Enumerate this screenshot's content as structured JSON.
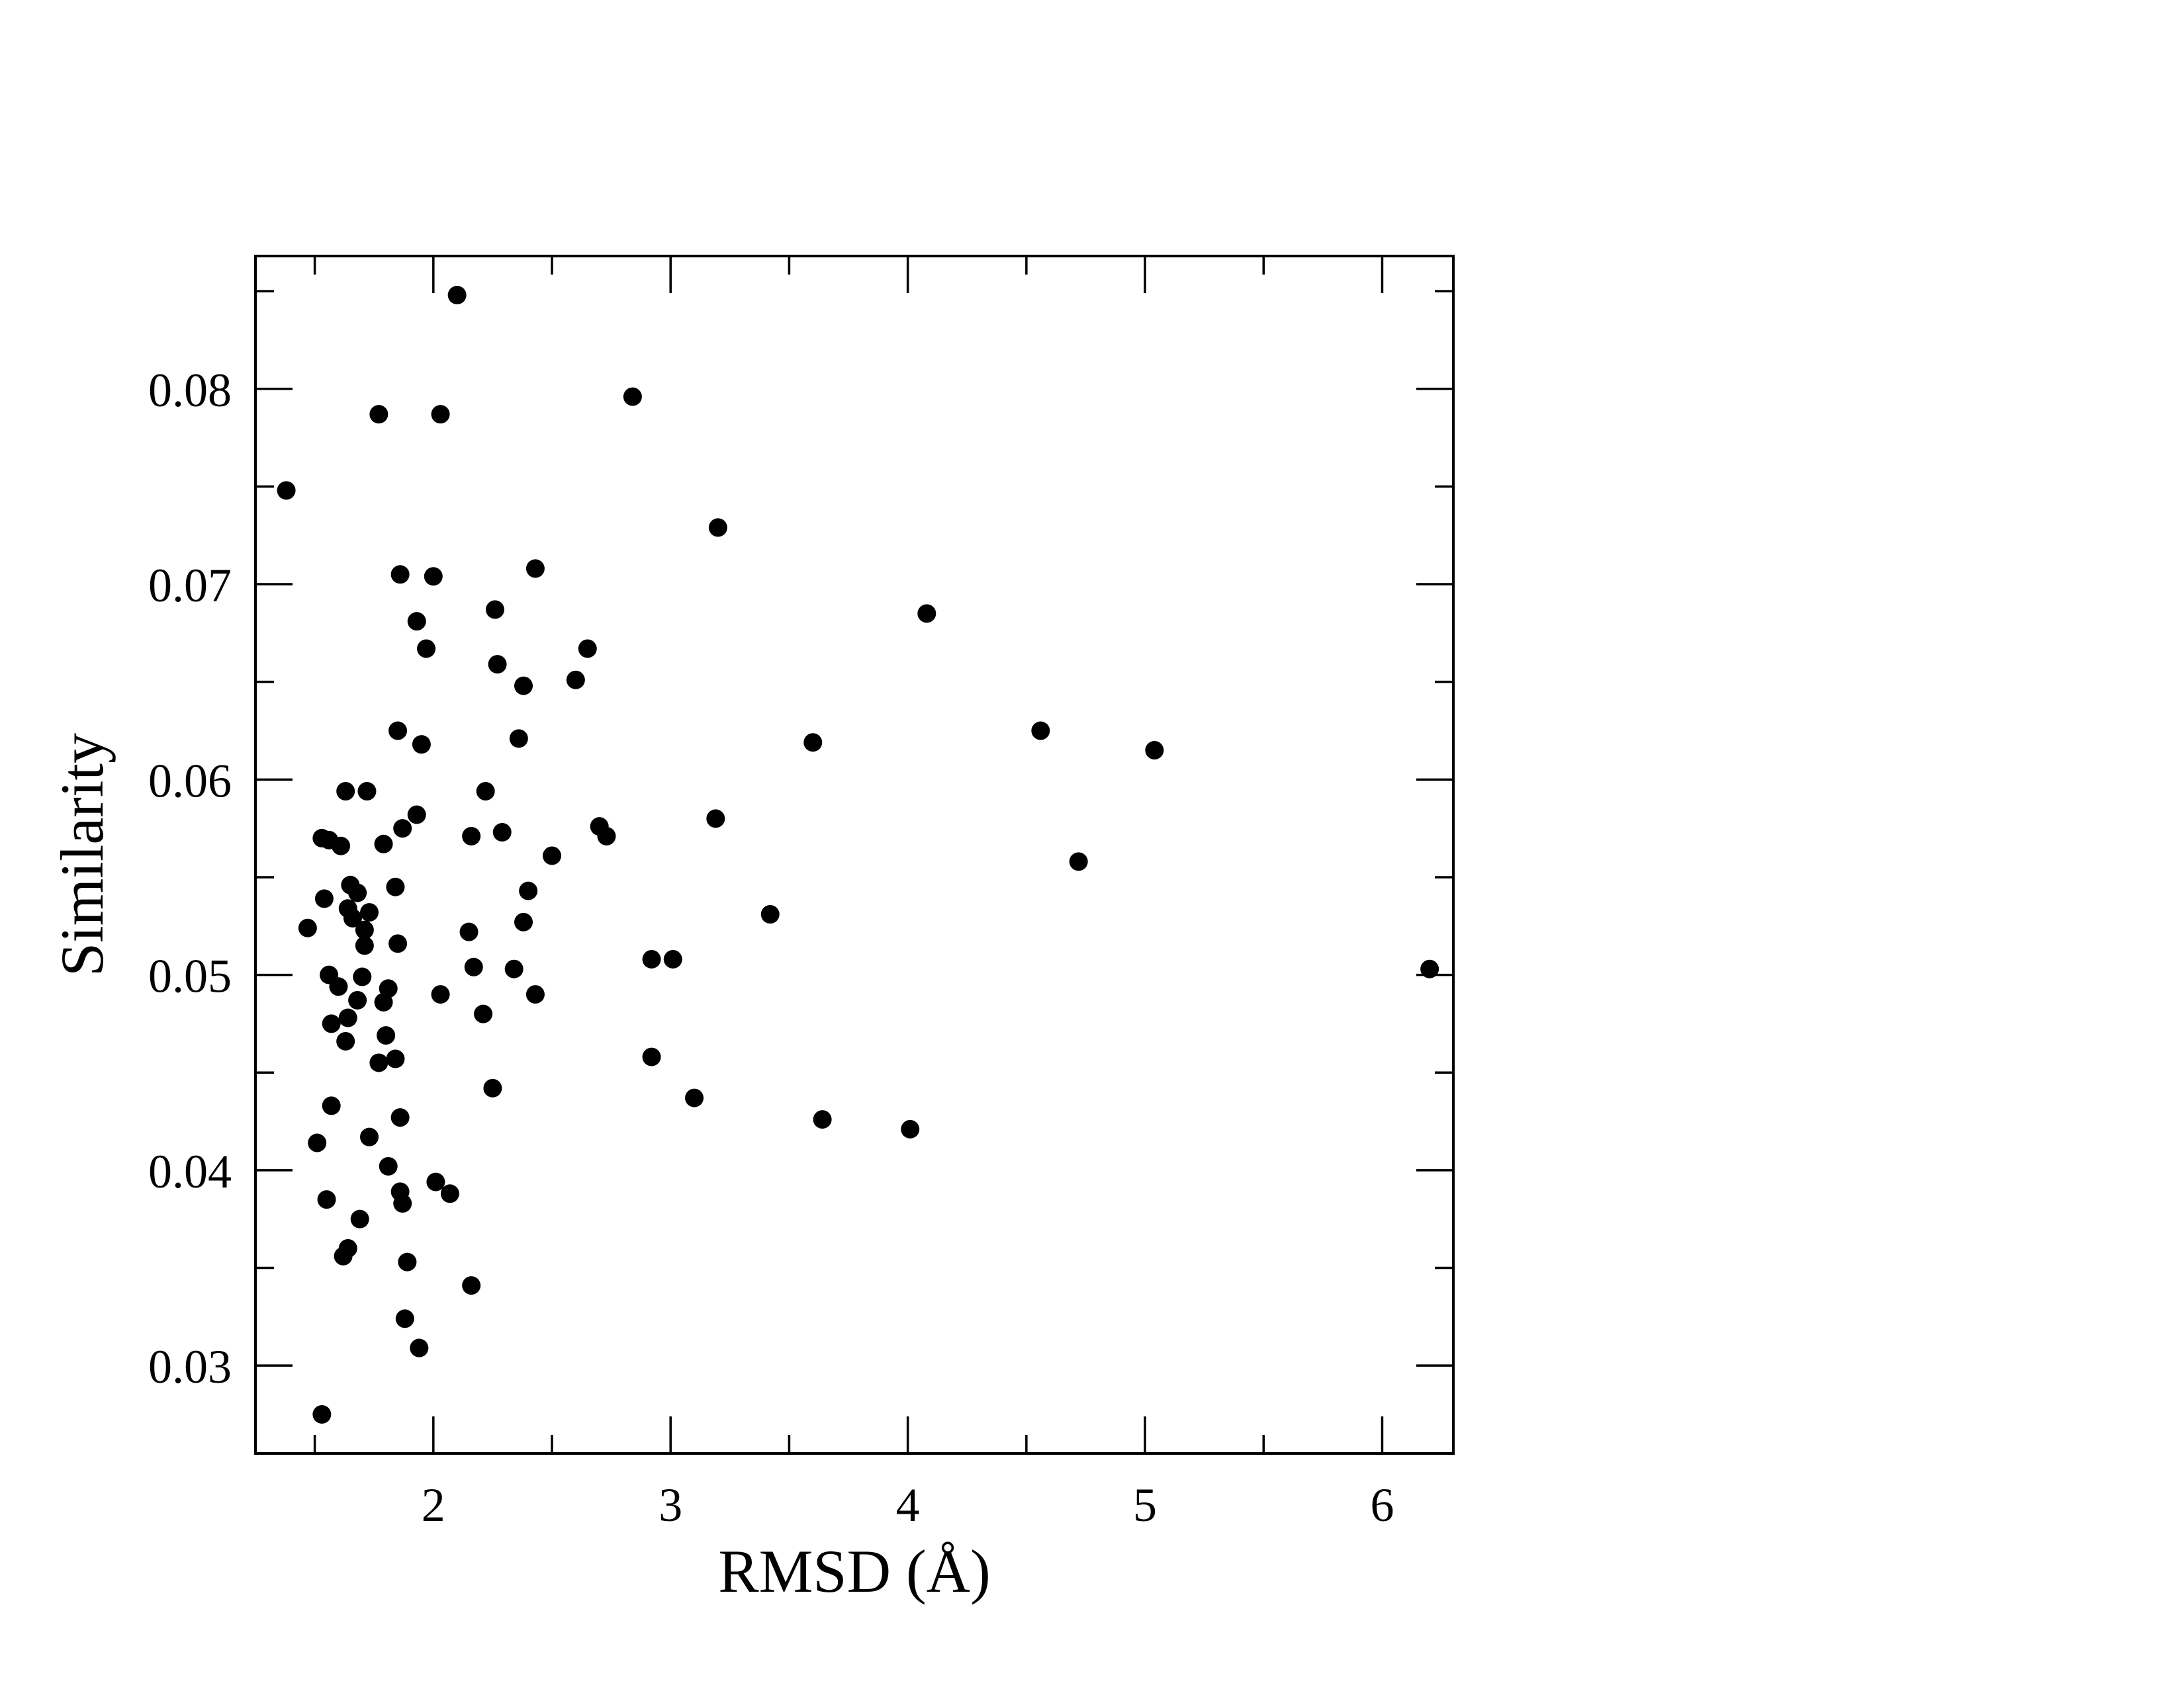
{
  "chart_data": {
    "type": "scatter",
    "title": "",
    "xlabel": "RMSD (Å)",
    "ylabel": "Similarity",
    "xlim": [
      1.25,
      6.3
    ],
    "ylim": [
      0.0255,
      0.0868
    ],
    "x_ticks": [
      2,
      3,
      4,
      5,
      6
    ],
    "x_tick_labels": [
      "2",
      "3",
      "4",
      "5",
      "6"
    ],
    "x_minor_ticks": [
      1.5,
      2.5,
      3.5,
      4.5,
      5.5
    ],
    "y_ticks": [
      0.03,
      0.04,
      0.05,
      0.06,
      0.07,
      0.08
    ],
    "y_tick_labels": [
      "0.03",
      "0.04",
      "0.05",
      "0.06",
      "0.07",
      "0.08"
    ],
    "y_minor_ticks": [
      0.035,
      0.045,
      0.055,
      0.065,
      0.075,
      0.085
    ],
    "grid": false,
    "marker_color": "#000000",
    "points": [
      [
        2.1,
        0.0848
      ],
      [
        2.84,
        0.0796
      ],
      [
        1.77,
        0.0787
      ],
      [
        2.03,
        0.0787
      ],
      [
        1.38,
        0.0748
      ],
      [
        3.2,
        0.0729
      ],
      [
        2.43,
        0.0708
      ],
      [
        1.86,
        0.0705
      ],
      [
        2.0,
        0.0704
      ],
      [
        1.93,
        0.0681
      ],
      [
        2.26,
        0.0687
      ],
      [
        4.08,
        0.0685
      ],
      [
        1.97,
        0.0667
      ],
      [
        2.65,
        0.0667
      ],
      [
        2.27,
        0.0659
      ],
      [
        2.6,
        0.0651
      ],
      [
        2.38,
        0.0648
      ],
      [
        1.85,
        0.0625
      ],
      [
        4.56,
        0.0625
      ],
      [
        1.95,
        0.0618
      ],
      [
        2.36,
        0.0621
      ],
      [
        3.6,
        0.0619
      ],
      [
        5.04,
        0.0615
      ],
      [
        1.63,
        0.0594
      ],
      [
        1.72,
        0.0594
      ],
      [
        2.22,
        0.0594
      ],
      [
        1.93,
        0.0582
      ],
      [
        3.19,
        0.058
      ],
      [
        1.87,
        0.0575
      ],
      [
        2.7,
        0.0576
      ],
      [
        2.29,
        0.0573
      ],
      [
        2.16,
        0.0571
      ],
      [
        2.73,
        0.0571
      ],
      [
        1.53,
        0.057
      ],
      [
        1.56,
        0.0569
      ],
      [
        1.61,
        0.0566
      ],
      [
        1.79,
        0.0567
      ],
      [
        2.5,
        0.0561
      ],
      [
        4.72,
        0.0558
      ],
      [
        1.65,
        0.0546
      ],
      [
        1.84,
        0.0545
      ],
      [
        1.68,
        0.0542
      ],
      [
        2.4,
        0.0543
      ],
      [
        1.54,
        0.0539
      ],
      [
        1.64,
        0.0534
      ],
      [
        1.73,
        0.0532
      ],
      [
        3.42,
        0.0531
      ],
      [
        1.66,
        0.0529
      ],
      [
        2.38,
        0.0527
      ],
      [
        1.71,
        0.0523
      ],
      [
        1.47,
        0.0524
      ],
      [
        2.15,
        0.0522
      ],
      [
        1.85,
        0.0516
      ],
      [
        1.71,
        0.0515
      ],
      [
        2.92,
        0.0508
      ],
      [
        3.01,
        0.0508
      ],
      [
        2.17,
        0.0504
      ],
      [
        2.34,
        0.0503
      ],
      [
        6.2,
        0.0503
      ],
      [
        1.56,
        0.05
      ],
      [
        1.7,
        0.0499
      ],
      [
        1.6,
        0.0494
      ],
      [
        1.81,
        0.0493
      ],
      [
        2.03,
        0.049
      ],
      [
        2.43,
        0.049
      ],
      [
        1.68,
        0.0487
      ],
      [
        1.79,
        0.0486
      ],
      [
        2.21,
        0.048
      ],
      [
        1.64,
        0.0478
      ],
      [
        1.57,
        0.0475
      ],
      [
        1.8,
        0.0469
      ],
      [
        1.63,
        0.0466
      ],
      [
        1.84,
        0.0457
      ],
      [
        2.92,
        0.0458
      ],
      [
        1.77,
        0.0455
      ],
      [
        2.25,
        0.0442
      ],
      [
        3.1,
        0.0437
      ],
      [
        1.57,
        0.0433
      ],
      [
        1.86,
        0.0427
      ],
      [
        3.64,
        0.0426
      ],
      [
        4.01,
        0.0421
      ],
      [
        1.73,
        0.0417
      ],
      [
        1.51,
        0.0414
      ],
      [
        1.81,
        0.0402
      ],
      [
        2.01,
        0.0394
      ],
      [
        1.86,
        0.0389
      ],
      [
        2.07,
        0.0388
      ],
      [
        1.55,
        0.0385
      ],
      [
        1.87,
        0.0383
      ],
      [
        1.69,
        0.0375
      ],
      [
        1.64,
        0.036
      ],
      [
        1.62,
        0.0356
      ],
      [
        1.89,
        0.0353
      ],
      [
        2.16,
        0.0341
      ],
      [
        1.88,
        0.0324
      ],
      [
        1.94,
        0.0309
      ],
      [
        1.53,
        0.0275
      ]
    ]
  }
}
